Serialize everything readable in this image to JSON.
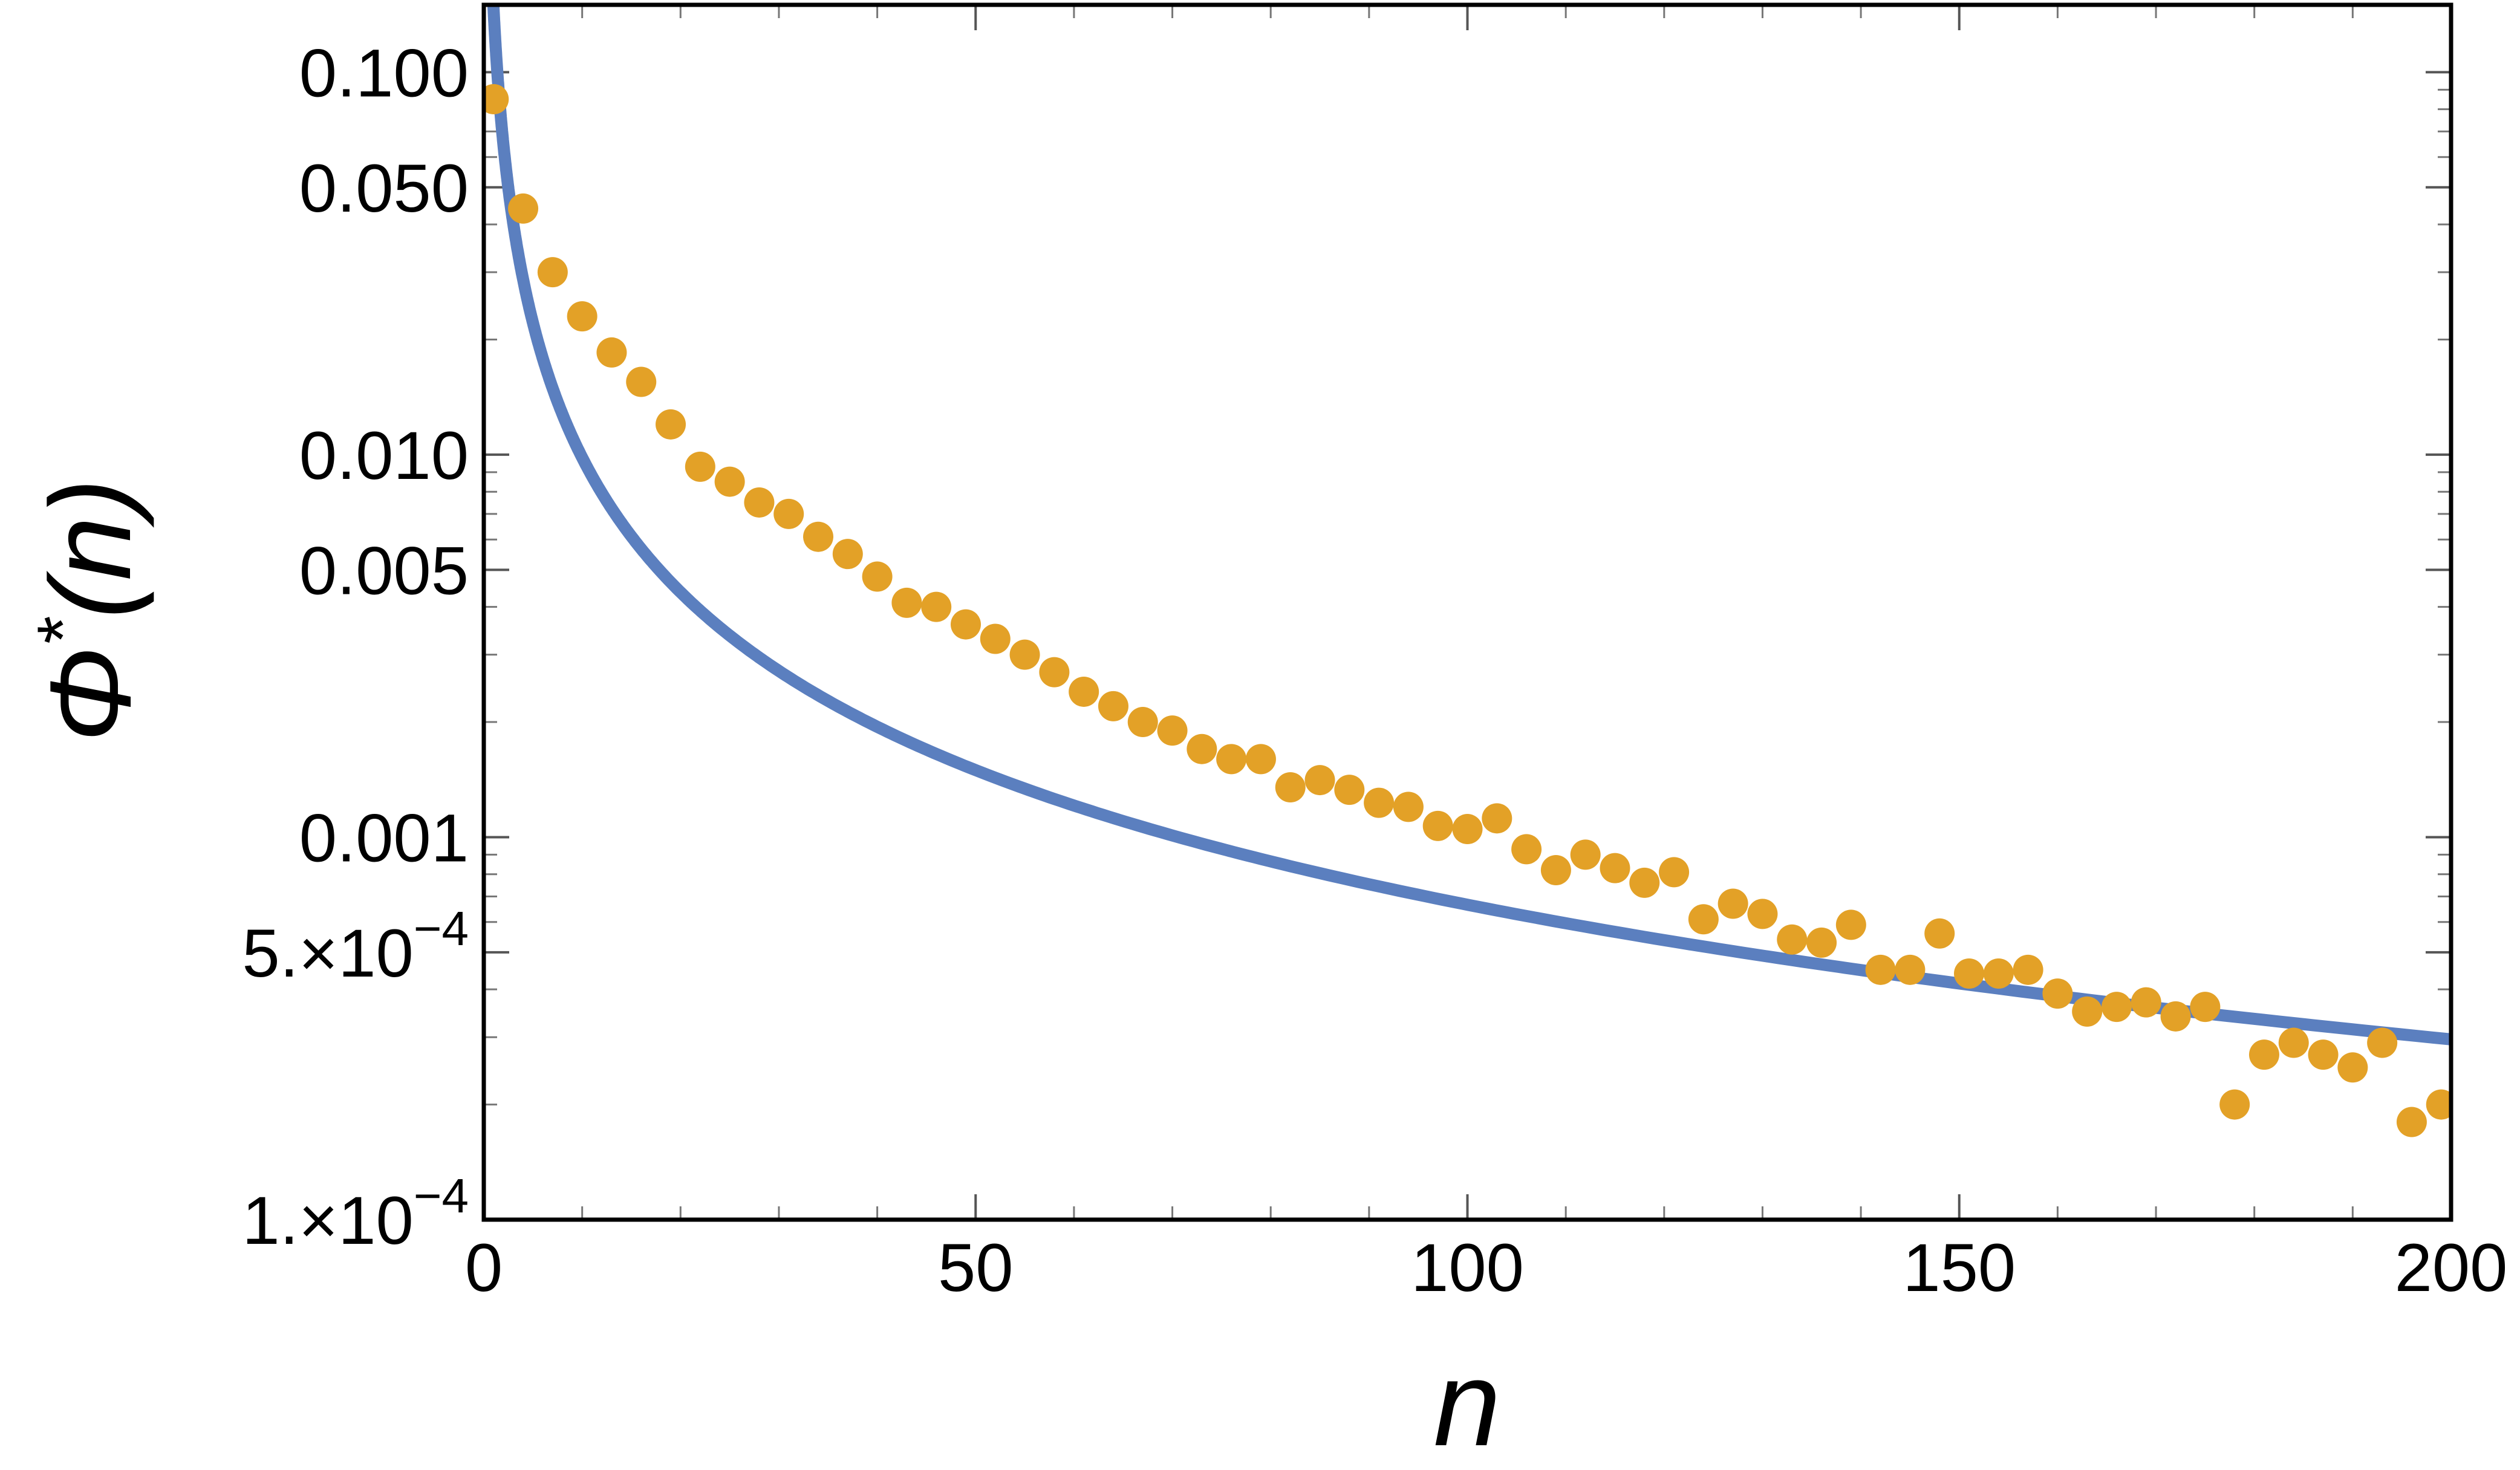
{
  "chart_data": {
    "type": "scatter",
    "title": "",
    "xlabel": "n",
    "ylabel_symbol": "Φ",
    "ylabel_superscript": "*",
    "ylabel_suffix": "(n)",
    "xlim": [
      0,
      200
    ],
    "ylim": [
      0.0001,
      0.15
    ],
    "y_scale": "log",
    "grid": false,
    "x_ticks": [
      0,
      50,
      100,
      150,
      200
    ],
    "x_tick_labels": [
      "0",
      "50",
      "100",
      "150",
      "200"
    ],
    "y_major_ticks": [
      {
        "value": 0.1,
        "mantissa": "0.100",
        "exponent": ""
      },
      {
        "value": 0.05,
        "mantissa": "0.050",
        "exponent": ""
      },
      {
        "value": 0.01,
        "mantissa": "0.010",
        "exponent": ""
      },
      {
        "value": 0.005,
        "mantissa": "0.005",
        "exponent": ""
      },
      {
        "value": 0.001,
        "mantissa": "0.001",
        "exponent": ""
      },
      {
        "value": 0.0005,
        "mantissa": "5.×10",
        "exponent": "−4"
      },
      {
        "value": 0.0001,
        "mantissa": "1.×10",
        "exponent": "−4"
      }
    ],
    "series": [
      {
        "kind": "line",
        "color": "#5b7fbf",
        "fit": {
          "form": "a*n^-b",
          "a": 0.145,
          "b": 1.169
        },
        "x_start": 0.85,
        "x_end": 200
      },
      {
        "kind": "points",
        "color": "#e3a127",
        "x": [
          1,
          4,
          7,
          10,
          13,
          16,
          19,
          22,
          25,
          28,
          31,
          34,
          37,
          40,
          43,
          46,
          49,
          52,
          55,
          58,
          61,
          64,
          67,
          70,
          73,
          76,
          79,
          82,
          85,
          88,
          91,
          94,
          97,
          100,
          103,
          106,
          109,
          112,
          115,
          118,
          121,
          124,
          127,
          130,
          133,
          136,
          139,
          142,
          145,
          148,
          151,
          154,
          157,
          160,
          163,
          166,
          169,
          172,
          175,
          178,
          181,
          184,
          187,
          190,
          193,
          196,
          199
        ],
        "y": [
          0.085,
          0.044,
          0.03,
          0.023,
          0.0185,
          0.0155,
          0.012,
          0.0093,
          0.0085,
          0.0075,
          0.007,
          0.0061,
          0.0055,
          0.0048,
          0.0041,
          0.004,
          0.0036,
          0.0033,
          0.003,
          0.0027,
          0.0024,
          0.0022,
          0.002,
          0.0019,
          0.0017,
          0.0016,
          0.0016,
          0.00135,
          0.00141,
          0.00133,
          0.00123,
          0.0012,
          0.00107,
          0.00105,
          0.00112,
          0.00093,
          0.00082,
          0.0009,
          0.00083,
          0.00076,
          0.00081,
          0.00061,
          0.00067,
          0.00063,
          0.00054,
          0.00053,
          0.00059,
          0.00045,
          0.00045,
          0.00056,
          0.00044,
          0.00044,
          0.00045,
          0.00039,
          0.00035,
          0.00036,
          0.00037,
          0.00034,
          0.00036,
          0.0002,
          0.00027,
          0.00029,
          0.00027,
          0.00025,
          0.00029,
          0.00018,
          0.0002
        ]
      }
    ]
  }
}
